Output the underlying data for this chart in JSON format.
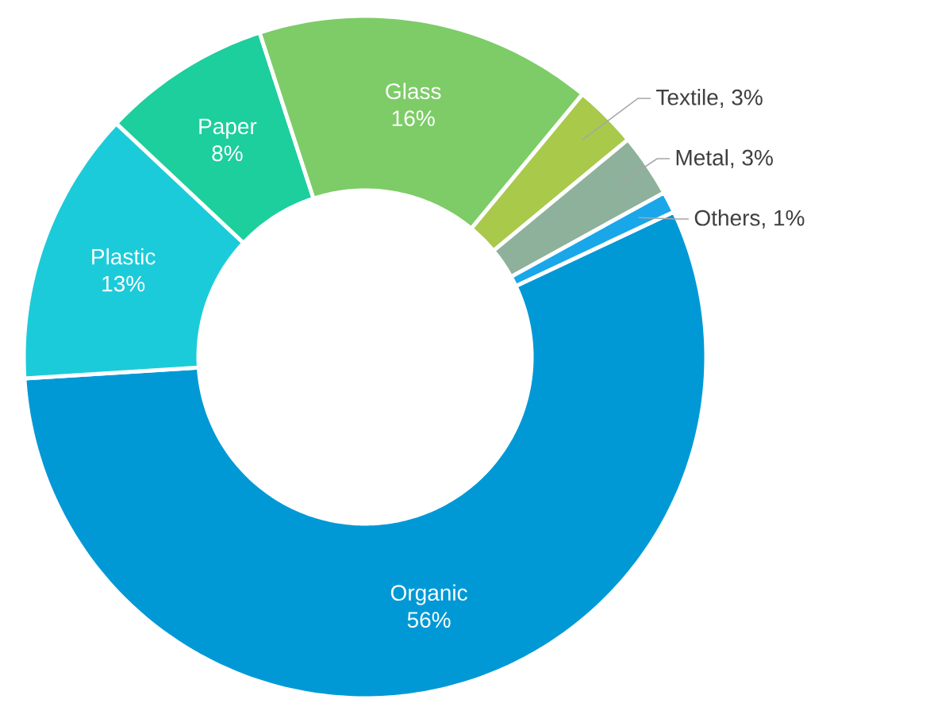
{
  "chart_data": {
    "type": "donut",
    "categories": [
      "Organic",
      "Plastic",
      "Paper",
      "Glass",
      "Textile",
      "Metal",
      "Others"
    ],
    "values": [
      56,
      13,
      8,
      16,
      3,
      3,
      1
    ],
    "value_labels": [
      "56%",
      "13%",
      "8%",
      "16%",
      ", 3%",
      ", 3%",
      ", 1%"
    ],
    "colors": [
      "#0099d6",
      "#1ccbd9",
      "#1ccf9c",
      "#7dcc67",
      "#a9c94b",
      "#8eb19c",
      "#19a7ea"
    ]
  }
}
